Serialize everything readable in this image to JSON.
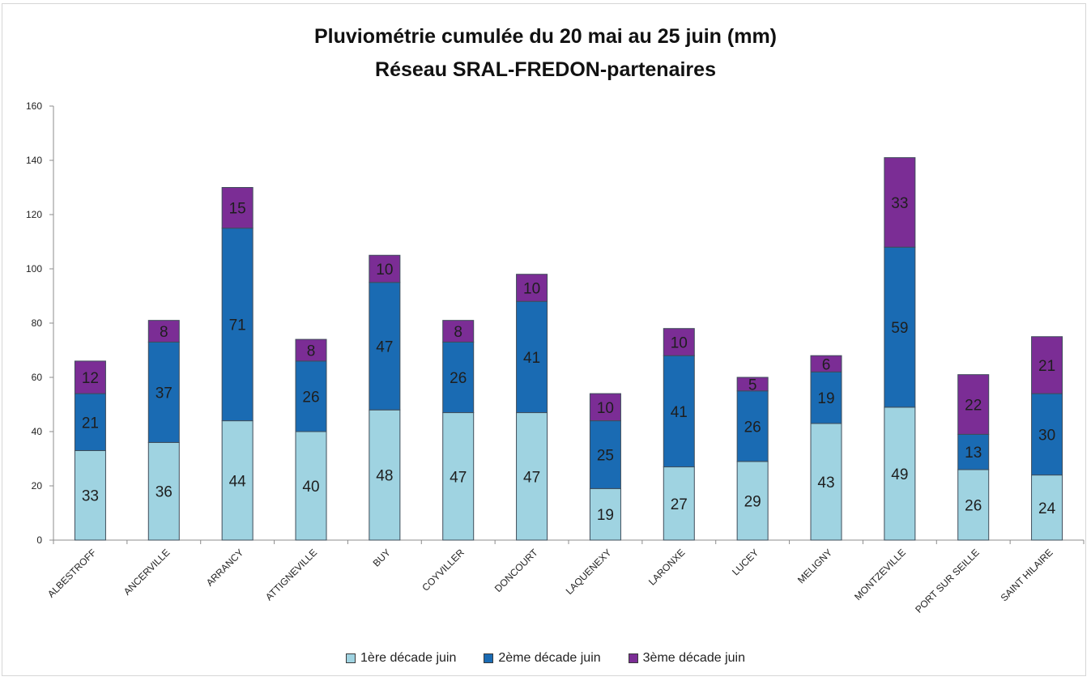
{
  "chart_data": {
    "type": "bar",
    "stacked": true,
    "title": "Pluviométrie cumulée du 20 mai au 25 juin (mm)",
    "subtitle": "Réseau SRAL-FREDON-partenaires",
    "xlabel": "",
    "ylabel": "",
    "ylim": [
      0,
      160
    ],
    "yticks": [
      0,
      20,
      40,
      60,
      80,
      100,
      120,
      140,
      160
    ],
    "grid": false,
    "legend_position": "bottom",
    "categories": [
      "ALBESTROFF",
      "ANCERVILLE",
      "ARRANCY",
      "ATTIGNEVILLE",
      "BUY",
      "COYVILLER",
      "DONCOURT",
      "LAQUENEXY",
      "LARONXE",
      "LUCEY",
      "MELIGNY",
      "MONTZEVILLE",
      "PORT SUR SEILLE",
      "SAINT HILAIRE"
    ],
    "series": [
      {
        "name": "1ère décade juin",
        "color": "#9fd3e1",
        "values": [
          33,
          36,
          44,
          40,
          48,
          47,
          47,
          19,
          27,
          29,
          43,
          49,
          26,
          24
        ]
      },
      {
        "name": "2ème décade juin",
        "color": "#1a6bb3",
        "values": [
          21,
          37,
          71,
          26,
          47,
          26,
          41,
          25,
          41,
          26,
          19,
          59,
          13,
          30
        ]
      },
      {
        "name": "3ème décade juin",
        "color": "#7b2d95",
        "values": [
          12,
          8,
          15,
          8,
          10,
          8,
          10,
          10,
          10,
          5,
          6,
          33,
          22,
          21
        ]
      }
    ]
  }
}
